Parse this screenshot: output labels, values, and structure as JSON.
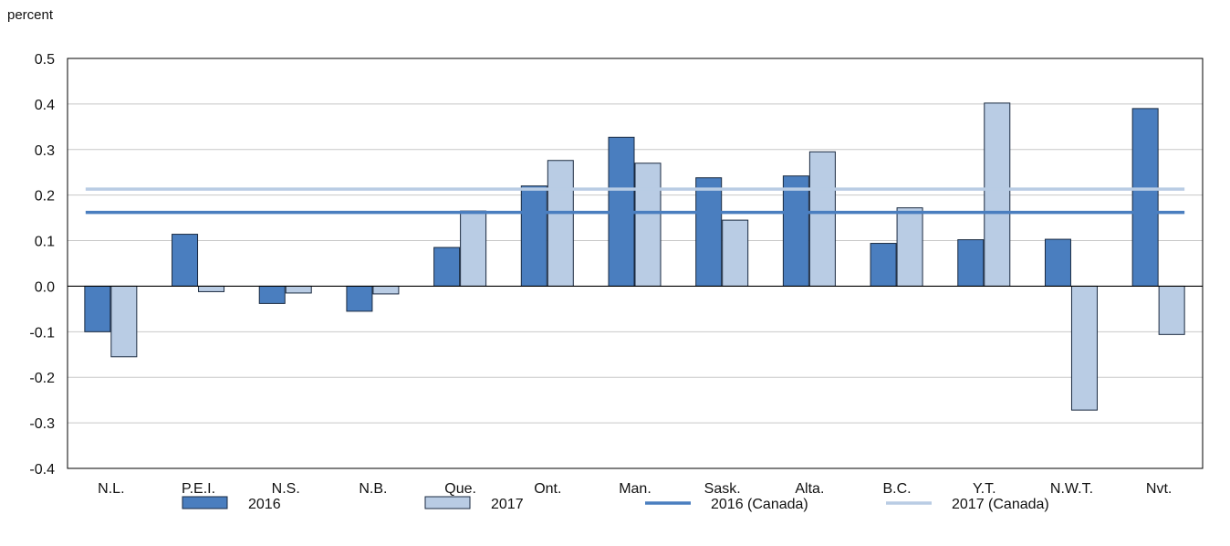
{
  "chart_data": {
    "type": "bar",
    "unit_label": "percent",
    "ylim": [
      -0.4,
      0.5
    ],
    "y_ticks": [
      "0.5",
      "0.4",
      "0.3",
      "0.2",
      "0.1",
      "0.0",
      "-0.1",
      "-0.2",
      "-0.3",
      "-0.4"
    ],
    "y_tick_values": [
      0.5,
      0.4,
      0.3,
      0.2,
      0.1,
      0.0,
      -0.1,
      -0.2,
      -0.3,
      -0.4
    ],
    "grid": true,
    "legend_position": "bottom",
    "categories": [
      "N.L.",
      "P.E.I.",
      "N.S.",
      "N.B.",
      "Que.",
      "Ont.",
      "Man.",
      "Sask.",
      "Alta.",
      "B.C.",
      "Y.T.",
      "N.W.T.",
      "Nvt."
    ],
    "series": [
      {
        "name": "2016",
        "color": "#4a7ebf",
        "values": [
          -0.1,
          0.114,
          -0.038,
          -0.055,
          0.085,
          0.22,
          0.327,
          0.238,
          0.242,
          0.094,
          0.102,
          0.103,
          0.39
        ]
      },
      {
        "name": "2017",
        "color": "#b9cce4",
        "values": [
          -0.155,
          -0.012,
          -0.015,
          -0.017,
          0.165,
          0.276,
          0.27,
          0.145,
          0.295,
          0.172,
          0.402,
          -0.272,
          -0.106
        ]
      }
    ],
    "reference_lines": [
      {
        "name": "2016 (Canada)",
        "color": "#4a7ebf",
        "value": 0.162
      },
      {
        "name": "2017 (Canada)",
        "color": "#b9cce4",
        "value": 0.213
      }
    ]
  }
}
